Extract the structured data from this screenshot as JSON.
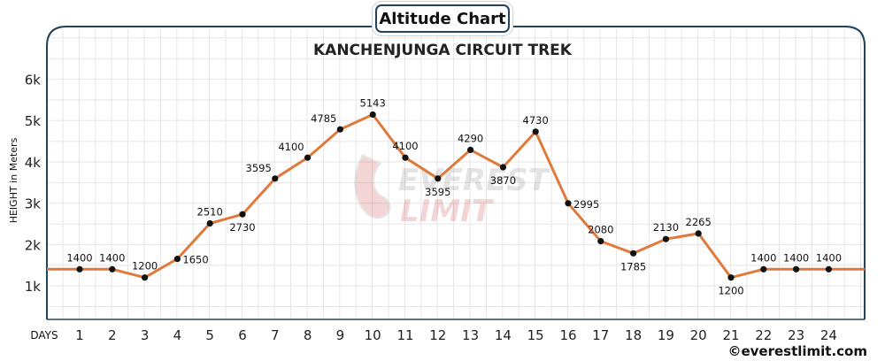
{
  "chart_data": {
    "type": "line",
    "badge_title": "Altitude Chart",
    "title": "KANCHENJUNGA CIRCUIT TREK",
    "ylabel": "HEIGHT in Meters",
    "xlabel": "DAYS",
    "y_ticks": [
      "1k",
      "2k",
      "3k",
      "4k",
      "5k",
      "6k"
    ],
    "ylim": [
      0,
      6000
    ],
    "x": [
      1,
      2,
      3,
      4,
      5,
      6,
      7,
      8,
      9,
      10,
      11,
      12,
      13,
      14,
      15,
      16,
      17,
      18,
      19,
      20,
      21,
      22,
      23,
      24
    ],
    "values": [
      1400,
      1400,
      1200,
      1650,
      2510,
      2730,
      3595,
      4100,
      4785,
      5143,
      4100,
      3595,
      4290,
      3870,
      4730,
      2995,
      2080,
      1785,
      2130,
      2265,
      1200,
      1400,
      1400,
      1400
    ],
    "labels": [
      "1400",
      "1400",
      "1200",
      "1650",
      "2510",
      "2730",
      "3595",
      "4100",
      "4785",
      "5143",
      "4100",
      "3595",
      "4290",
      "3870",
      "4730",
      "2995",
      "2080",
      "1785",
      "2130",
      "2265",
      "1200",
      "1400",
      "1400",
      "1400"
    ],
    "grid": true,
    "colors": {
      "line": "#e07a3c",
      "marker": "#111111",
      "frame": "#23435a",
      "grid": "#e6e6e6",
      "watermark": "#cccccc"
    }
  },
  "watermark": {
    "line1": "EVEREST",
    "line2": "LIMIT"
  },
  "credit": "©everestlimit.com"
}
